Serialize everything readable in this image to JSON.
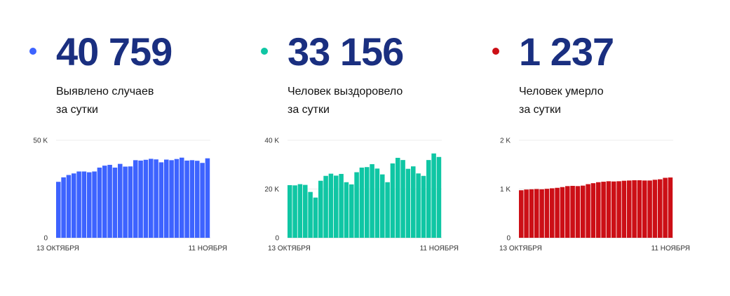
{
  "colors": {
    "number": "#1a2f80"
  },
  "panels": [
    {
      "color": "#3d63ff",
      "value": "40 759",
      "desc_line1": "Выявлено случаев",
      "desc_line2": "за сутки",
      "chart_data": {
        "type": "bar",
        "series": [
          {
            "values": [
              28700,
              31000,
              32200,
              33000,
              34000,
              34000,
              33600,
              34000,
              36000,
              37000,
              37400,
              36000,
              37900,
              36500,
              36600,
              39800,
              39600,
              40000,
              40500,
              40200,
              38700,
              40100,
              39800,
              40400,
              41100,
              39600,
              39800,
              39500,
              38400,
              40759
            ]
          }
        ],
        "x_tick_labels": [
          "13 ОКТЯБРЯ",
          "11 НОЯБРЯ"
        ],
        "y_ticks": [
          {
            "value": 0,
            "label": "0"
          },
          {
            "value": 50000,
            "label": "50 K"
          }
        ],
        "ylim": [
          0,
          50000
        ]
      }
    },
    {
      "color": "#0fc6a4",
      "value": "33 156",
      "desc_line1": "Человек выздоровело",
      "desc_line2": "за сутки",
      "chart_data": {
        "type": "bar",
        "series": [
          {
            "values": [
              21600,
              21500,
              22000,
              21700,
              18800,
              16500,
              23400,
              25400,
              26300,
              25500,
              26200,
              22800,
              21900,
              26900,
              28800,
              29000,
              30200,
              28400,
              26000,
              22800,
              30500,
              32800,
              31900,
              28300,
              29300,
              26400,
              25400,
              31900,
              34600,
              33156
            ]
          }
        ],
        "x_tick_labels": [
          "13 ОКТЯБРЯ",
          "11 НОЯБРЯ"
        ],
        "y_ticks": [
          {
            "value": 0,
            "label": "0"
          },
          {
            "value": 20000,
            "label": "20 K"
          },
          {
            "value": 40000,
            "label": "40 K"
          }
        ],
        "ylim": [
          0,
          40000
        ]
      }
    },
    {
      "color": "#cc0f16",
      "value": "1 237",
      "desc_line1": "Человек умерло",
      "desc_line2": "за сутки",
      "chart_data": {
        "type": "bar",
        "series": [
          {
            "values": [
              975,
              990,
              995,
              1000,
              995,
              1005,
              1015,
              1025,
              1040,
              1060,
              1065,
              1060,
              1070,
              1100,
              1120,
              1140,
              1150,
              1160,
              1155,
              1160,
              1170,
              1175,
              1180,
              1180,
              1175,
              1175,
              1190,
              1200,
              1230,
              1237
            ]
          }
        ],
        "x_tick_labels": [
          "13 ОКТЯБРЯ",
          "11 НОЯБРЯ"
        ],
        "y_ticks": [
          {
            "value": 0,
            "label": "0"
          },
          {
            "value": 1000,
            "label": "1 K"
          },
          {
            "value": 2000,
            "label": "2 K"
          }
        ],
        "ylim": [
          0,
          2000
        ]
      }
    }
  ]
}
